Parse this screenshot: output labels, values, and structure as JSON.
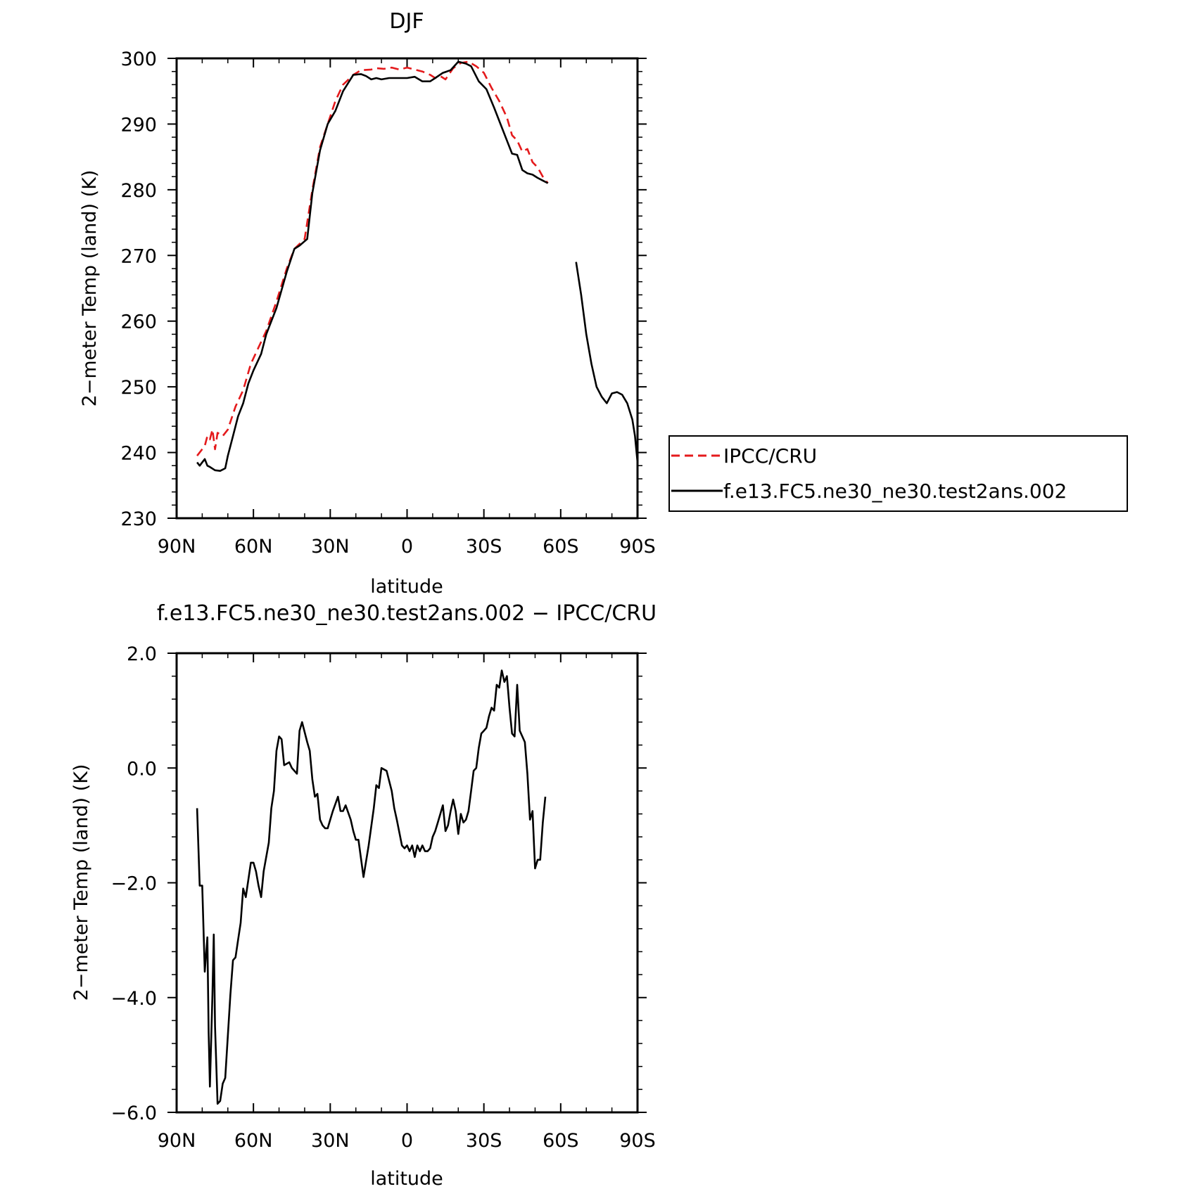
{
  "chart_data": [
    {
      "type": "line",
      "title": "DJF",
      "xlabel": "latitude",
      "ylabel": "2−meter Temp (land) (K)",
      "xlim": [
        90,
        -90
      ],
      "ylim": [
        230,
        300
      ],
      "xticks": [
        90,
        60,
        30,
        0,
        -30,
        -60,
        -90
      ],
      "xtick_labels": [
        "90N",
        "60N",
        "30N",
        "0",
        "30S",
        "60S",
        "90S"
      ],
      "yticks": [
        230,
        240,
        250,
        260,
        270,
        280,
        290,
        300
      ],
      "ytick_labels": [
        "230",
        "240",
        "250",
        "260",
        "270",
        "280",
        "290",
        "300"
      ],
      "legend_position": "right",
      "series": [
        {
          "name": "IPCC/CRU",
          "color": "#e41a1c",
          "dash": "dashed",
          "x": [
            82,
            79,
            78,
            77,
            76,
            75,
            74,
            72,
            70,
            67,
            64,
            61,
            58,
            55,
            51,
            47,
            44,
            40,
            37,
            34,
            31,
            28,
            25,
            21,
            18,
            14,
            12,
            9,
            6,
            3,
            0,
            -3,
            -6,
            -9,
            -11,
            -13,
            -15,
            -18,
            -21,
            -24,
            -27,
            -30,
            -33,
            -36,
            -39,
            -41,
            -43,
            -45,
            -47,
            -49,
            -51,
            -53,
            -55
          ],
          "y": [
            239.5,
            241.0,
            242.5,
            242.0,
            243.5,
            240.5,
            243.0,
            242.5,
            243.5,
            247.0,
            249.5,
            253.5,
            256.0,
            258.5,
            263.0,
            268.0,
            271.0,
            272.5,
            280.0,
            286.5,
            290.0,
            293.5,
            296.0,
            297.5,
            298.2,
            298.3,
            298.5,
            298.4,
            298.6,
            298.3,
            298.6,
            298.3,
            298.0,
            297.5,
            297.0,
            297.3,
            296.8,
            298.5,
            299.3,
            299.5,
            298.8,
            297.8,
            295.5,
            293.5,
            291.0,
            288.3,
            287.5,
            285.8,
            286.2,
            284.2,
            283.4,
            282.0,
            281.0
          ]
        },
        {
          "name": "f.e13.FC5.ne30_ne30.test2ans.002",
          "color": "#000000",
          "dash": "solid",
          "segments": [
            {
              "x": [
                82,
                81,
                80,
                79,
                78,
                77,
                75,
                73,
                71,
                70,
                68,
                66,
                64,
                62,
                60,
                57,
                55,
                51,
                47,
                44,
                42,
                39,
                37,
                34,
                31,
                28,
                25,
                21,
                18,
                16,
                14,
                12,
                10,
                7,
                5,
                2,
                0,
                -3,
                -6,
                -9,
                -11,
                -14,
                -17,
                -20,
                -23,
                -25,
                -28,
                -31,
                -34,
                -37,
                -39,
                -41,
                -43,
                -45,
                -47,
                -49,
                -51,
                -53,
                -55
              ],
              "y": [
                238.5,
                238.0,
                238.5,
                239.0,
                238.0,
                237.8,
                237.3,
                237.2,
                237.6,
                239.5,
                242.5,
                245.5,
                247.5,
                250.5,
                252.5,
                255.0,
                258.0,
                262.0,
                267.5,
                271.0,
                271.5,
                272.5,
                279.5,
                286.0,
                290.0,
                292.0,
                295.0,
                297.5,
                297.6,
                297.3,
                296.8,
                297.0,
                296.8,
                297.0,
                297.0,
                297.0,
                297.0,
                297.2,
                296.5,
                296.5,
                297.0,
                297.8,
                298.2,
                299.5,
                299.2,
                298.8,
                296.5,
                295.3,
                292.5,
                289.5,
                287.5,
                285.5,
                285.3,
                283.0,
                282.5,
                282.3,
                281.8,
                281.4,
                281.0
              ]
            },
            {
              "x": [
                -66,
                -68,
                -70,
                -72,
                -74,
                -76,
                -78,
                -80,
                -82,
                -84,
                -86,
                -88,
                -89,
                -90
              ],
              "y": [
                269.0,
                264.0,
                258.0,
                253.5,
                250.0,
                248.5,
                247.5,
                249.0,
                249.2,
                248.8,
                247.5,
                245.0,
                242.5,
                238.5
              ]
            }
          ]
        }
      ]
    },
    {
      "type": "line",
      "title": "f.e13.FC5.ne30_ne30.test2ans.002 − IPCC/CRU",
      "xlabel": "latitude",
      "ylabel": "2−meter Temp (land) (K)",
      "xlim": [
        90,
        -90
      ],
      "ylim": [
        -6.0,
        2.0
      ],
      "xticks": [
        90,
        60,
        30,
        0,
        -30,
        -60,
        -90
      ],
      "xtick_labels": [
        "90N",
        "60N",
        "30N",
        "0",
        "30S",
        "60S",
        "90S"
      ],
      "yticks": [
        -6.0,
        -4.0,
        -2.0,
        0.0,
        2.0
      ],
      "ytick_labels": [
        "−6.0",
        "−4.0",
        "−2.0",
        "0.0",
        "2.0"
      ],
      "series": [
        {
          "color": "#000000",
          "dash": "solid",
          "x": [
            82,
            81,
            80,
            79,
            78,
            77.5,
            77,
            76,
            75.5,
            75,
            74,
            73,
            72,
            71,
            69,
            68,
            67,
            66,
            65,
            64,
            63,
            62,
            61,
            60,
            59,
            58,
            57,
            56,
            54,
            53,
            52,
            51,
            50,
            49,
            48,
            46,
            45,
            43,
            42,
            41,
            39,
            38,
            37,
            36,
            35,
            34,
            33,
            32,
            31,
            30,
            29,
            27,
            26,
            25,
            24,
            22,
            21,
            20,
            19,
            17,
            15,
            13,
            12,
            11,
            10,
            8,
            6,
            5,
            4,
            2,
            1,
            0,
            -1,
            -2,
            -3,
            -4,
            -5,
            -6,
            -7,
            -8,
            -9,
            -10,
            -11,
            -12,
            -13,
            -14,
            -15,
            -16,
            -17,
            -18,
            -19,
            -20,
            -21,
            -22,
            -23,
            -24,
            -25,
            -26,
            -27,
            -28,
            -29,
            -30,
            -31,
            -32,
            -33,
            -34,
            -35,
            -36,
            -37,
            -38,
            -39,
            -40,
            -41,
            -42,
            -43,
            -44,
            -45,
            -46,
            -47,
            -48,
            -49,
            -50,
            -51,
            -52,
            -53,
            -54
          ],
          "y": [
            -0.7,
            -2.05,
            -2.05,
            -3.55,
            -2.95,
            -4.6,
            -5.55,
            -3.95,
            -2.9,
            -4.5,
            -5.85,
            -5.8,
            -5.5,
            -5.4,
            -3.95,
            -3.35,
            -3.3,
            -3.0,
            -2.7,
            -2.1,
            -2.25,
            -1.95,
            -1.65,
            -1.65,
            -1.8,
            -2.05,
            -2.25,
            -1.8,
            -1.3,
            -0.7,
            -0.4,
            0.3,
            0.55,
            0.5,
            0.05,
            0.1,
            0.0,
            -0.1,
            0.65,
            0.8,
            0.45,
            0.3,
            -0.2,
            -0.5,
            -0.45,
            -0.9,
            -1.0,
            -1.05,
            -1.05,
            -0.9,
            -0.75,
            -0.5,
            -0.75,
            -0.75,
            -0.65,
            -0.9,
            -1.1,
            -1.25,
            -1.25,
            -1.9,
            -1.35,
            -0.7,
            -0.3,
            -0.35,
            0.0,
            -0.05,
            -0.4,
            -0.7,
            -0.9,
            -1.35,
            -1.4,
            -1.35,
            -1.45,
            -1.35,
            -1.55,
            -1.35,
            -1.45,
            -1.35,
            -1.45,
            -1.45,
            -1.4,
            -1.2,
            -1.1,
            -0.95,
            -0.8,
            -0.65,
            -1.1,
            -1.0,
            -0.75,
            -0.55,
            -0.75,
            -1.15,
            -0.8,
            -0.95,
            -0.9,
            -0.75,
            -0.4,
            -0.05,
            0.0,
            0.35,
            0.6,
            0.65,
            0.7,
            0.9,
            1.05,
            1.0,
            1.45,
            1.4,
            1.7,
            1.5,
            1.6,
            1.05,
            0.6,
            0.55,
            1.45,
            0.65,
            0.55,
            0.45,
            -0.1,
            -0.9,
            -0.75,
            -1.75,
            -1.6,
            -1.6,
            -0.95,
            -0.5
          ]
        }
      ]
    }
  ],
  "legend": {
    "items": [
      {
        "label": "IPCC/CRU",
        "color": "#e41a1c",
        "dash": "dashed"
      },
      {
        "label": "f.e13.FC5.ne30_ne30.test2ans.002",
        "color": "#000000",
        "dash": "solid"
      }
    ]
  }
}
